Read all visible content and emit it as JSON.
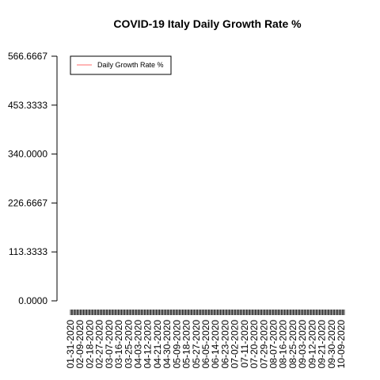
{
  "chart_data": {
    "type": "line",
    "title": "COVID-19 Italy Daily Growth Rate %",
    "xlabel": "",
    "ylabel": "",
    "ylim": [
      0,
      566.6667
    ],
    "y_ticks": [
      "0.0000",
      "113.3333",
      "226.6667",
      "340.0000",
      "453.3333",
      "566.6667"
    ],
    "x_ticks": [
      "01-31-2020",
      "02-09-2020",
      "02-18-2020",
      "02-27-2020",
      "03-07-2020",
      "03-16-2020",
      "03-25-2020",
      "04-03-2020",
      "04-12-2020",
      "04-21-2020",
      "04-30-2020",
      "05-09-2020",
      "05-18-2020",
      "05-27-2020",
      "06-05-2020",
      "06-14-2020",
      "06-23-2020",
      "07-02-2020",
      "07-11-2020",
      "07-20-2020",
      "07-29-2020",
      "08-07-2020",
      "08-16-2020",
      "08-25-2020",
      "09-03-2020",
      "09-12-2020",
      "09-21-2020",
      "09-30-2020",
      "10-09-2020"
    ],
    "x_range": [
      "01-31-2020",
      "10-09-2020"
    ],
    "legend_position": "top-left",
    "grid": false,
    "series": [
      {
        "name": "Daily Growth Rate %",
        "color": "#ff6b6b",
        "values": []
      }
    ]
  }
}
